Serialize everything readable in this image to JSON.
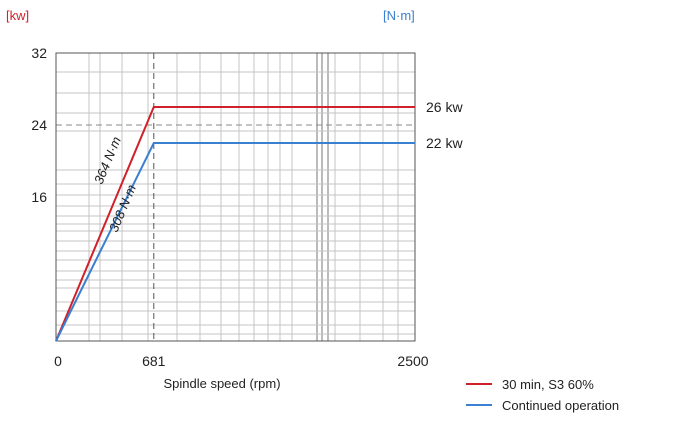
{
  "chart_data": {
    "type": "line",
    "left_unit": "[kw]",
    "right_unit": "[N·m]",
    "xlabel": "Spindle speed (rpm)",
    "x_ticks": [
      "0",
      "681",
      "2500"
    ],
    "y_ticks": [
      "32",
      "24",
      "16"
    ],
    "xlim": [
      0,
      2500
    ],
    "ylim": [
      0,
      32
    ],
    "colors": {
      "red": "#d0202a",
      "blue": "#3a7fd0"
    },
    "series": [
      {
        "name": "30 min, S3 60%",
        "color": "#d0202a",
        "points": [
          [
            0,
            0
          ],
          [
            681,
            26
          ],
          [
            2500,
            26
          ]
        ],
        "end_label": "26 kw",
        "torque_label": "364 N·m"
      },
      {
        "name": "Continued operation",
        "color": "#3a7fd0",
        "points": [
          [
            0,
            0
          ],
          [
            681,
            22
          ],
          [
            2500,
            22
          ]
        ],
        "end_label": "22 kw",
        "torque_label": "308 N·m"
      }
    ],
    "grid": true,
    "legend_position": "bottom-right"
  }
}
